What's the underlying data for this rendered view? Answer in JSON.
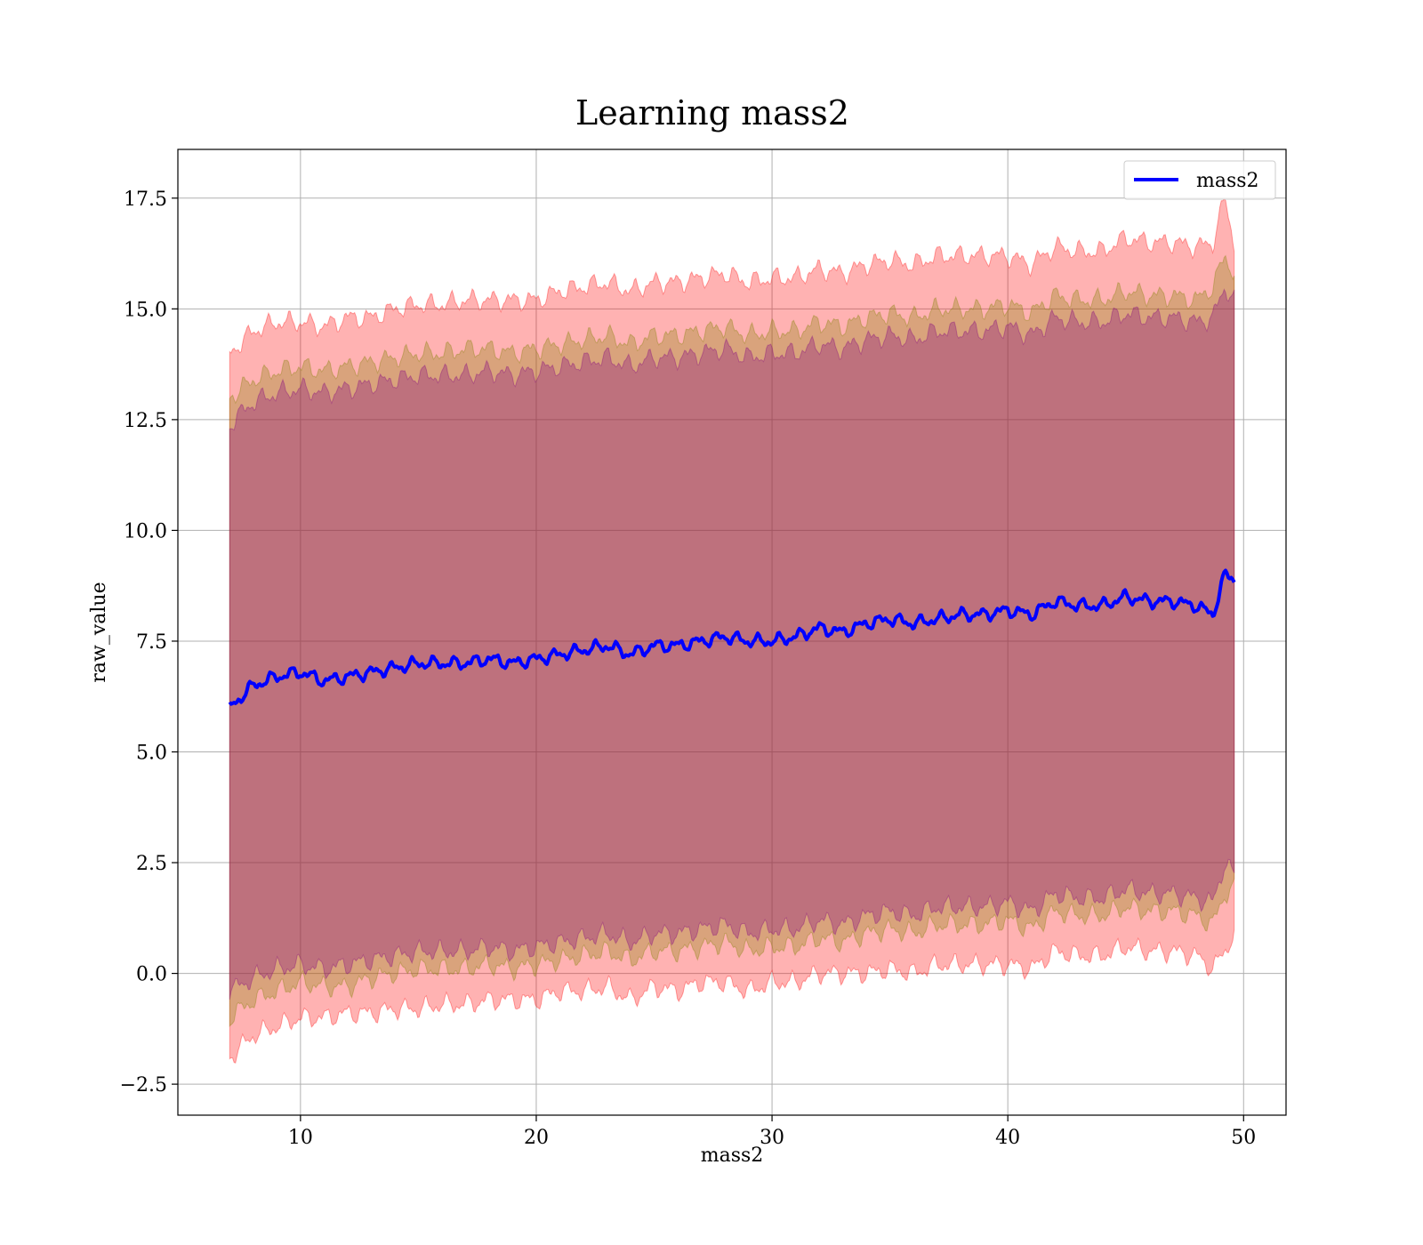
{
  "chart_data": {
    "type": "line",
    "title": "Learning mass2",
    "xlabel": "mass2",
    "ylabel": "raw_value",
    "xlim": [
      4.8,
      51.8
    ],
    "ylim": [
      -3.2,
      18.6
    ],
    "xticks": [
      10,
      20,
      30,
      40,
      50
    ],
    "xtick_labels": [
      "10",
      "20",
      "30",
      "40",
      "50"
    ],
    "yticks": [
      -2.5,
      0.0,
      2.5,
      5.0,
      7.5,
      10.0,
      12.5,
      15.0,
      17.5
    ],
    "ytick_labels": [
      "−2.5",
      "0.0",
      "2.5",
      "5.0",
      "7.5",
      "10.0",
      "12.5",
      "15.0",
      "17.5"
    ],
    "grid": true,
    "legend_position": "top-right",
    "x_range": [
      7.0,
      49.6
    ],
    "series": [
      {
        "name": "mass2",
        "color": "#0000ff",
        "x": [
          7.0,
          8,
          9,
          10,
          11,
          12,
          13,
          14,
          15,
          16,
          17,
          18,
          19,
          20,
          21,
          22,
          23,
          24,
          25,
          26,
          27,
          28,
          29,
          30,
          31,
          32,
          33,
          34,
          35,
          36,
          37,
          38,
          39,
          40,
          41,
          42,
          43,
          44,
          45,
          46,
          47,
          48,
          48.7,
          49.2,
          49.6
        ],
        "y": [
          6.0,
          6.5,
          6.7,
          6.8,
          6.6,
          6.7,
          6.8,
          6.9,
          7.0,
          7.0,
          7.0,
          7.1,
          7.0,
          7.1,
          7.2,
          7.3,
          7.4,
          7.2,
          7.4,
          7.4,
          7.5,
          7.6,
          7.5,
          7.5,
          7.6,
          7.8,
          7.7,
          7.9,
          8.0,
          7.9,
          8.0,
          8.1,
          8.1,
          8.2,
          8.1,
          8.4,
          8.3,
          8.3,
          8.5,
          8.4,
          8.4,
          8.3,
          8.1,
          9.0,
          8.9
        ]
      }
    ],
    "bands": [
      {
        "fill": "#ff0000",
        "opacity": 0.3,
        "lower": [
          -1.9,
          -1.4,
          -1.2,
          -1.0,
          -1.0,
          -0.9,
          -0.9,
          -0.8,
          -0.8,
          -0.7,
          -0.7,
          -0.6,
          -0.6,
          -0.6,
          -0.4,
          -0.4,
          -0.3,
          -0.6,
          -0.3,
          -0.4,
          -0.2,
          -0.2,
          -0.4,
          -0.2,
          -0.2,
          0.0,
          0.0,
          0.0,
          0.1,
          0.0,
          0.2,
          0.2,
          0.2,
          0.2,
          0.1,
          0.5,
          0.4,
          0.4,
          0.6,
          0.5,
          0.5,
          0.4,
          0.1,
          0.5,
          0.9
        ],
        "upper": [
          14.0,
          14.5,
          14.7,
          14.7,
          14.6,
          14.8,
          14.8,
          15.0,
          15.1,
          15.1,
          15.2,
          15.2,
          15.2,
          15.2,
          15.4,
          15.5,
          15.6,
          15.4,
          15.6,
          15.6,
          15.7,
          15.8,
          15.6,
          15.7,
          15.7,
          15.9,
          15.8,
          16.0,
          16.1,
          16.0,
          16.2,
          16.2,
          16.2,
          16.2,
          16.0,
          16.4,
          16.3,
          16.3,
          16.6,
          16.5,
          16.5,
          16.4,
          16.5,
          17.5,
          16.5
        ]
      },
      {
        "fill": "#808000",
        "opacity": 0.3,
        "lower": [
          -1.0,
          -0.6,
          -0.4,
          -0.2,
          -0.3,
          -0.3,
          -0.1,
          0.0,
          0.1,
          0.1,
          0.1,
          0.2,
          0.1,
          0.2,
          0.3,
          0.4,
          0.5,
          0.3,
          0.5,
          0.5,
          0.6,
          0.7,
          0.5,
          0.6,
          0.6,
          0.8,
          0.7,
          0.9,
          1.0,
          0.9,
          1.1,
          1.1,
          1.1,
          1.2,
          1.0,
          1.4,
          1.3,
          1.3,
          1.5,
          1.4,
          1.4,
          1.3,
          1.1,
          1.8,
          1.9
        ],
        "upper": [
          13.0,
          13.4,
          13.6,
          13.7,
          13.6,
          13.7,
          13.8,
          13.9,
          14.0,
          14.0,
          14.1,
          14.1,
          14.0,
          14.1,
          14.2,
          14.3,
          14.4,
          14.2,
          14.4,
          14.4,
          14.5,
          14.6,
          14.4,
          14.5,
          14.5,
          14.7,
          14.6,
          14.8,
          14.9,
          14.8,
          15.0,
          15.0,
          15.0,
          15.1,
          14.9,
          15.3,
          15.2,
          15.2,
          15.4,
          15.3,
          15.3,
          15.2,
          15.5,
          16.2,
          15.8
        ]
      },
      {
        "fill": "#800080",
        "opacity": 0.3,
        "lower": [
          -0.4,
          -0.1,
          0.1,
          0.2,
          0.1,
          0.2,
          0.3,
          0.4,
          0.5,
          0.5,
          0.5,
          0.6,
          0.5,
          0.6,
          0.7,
          0.8,
          0.9,
          0.7,
          0.9,
          0.9,
          1.0,
          1.1,
          0.9,
          1.0,
          1.0,
          1.2,
          1.1,
          1.3,
          1.4,
          1.3,
          1.5,
          1.5,
          1.5,
          1.6,
          1.4,
          1.8,
          1.7,
          1.7,
          1.9,
          1.8,
          1.8,
          1.7,
          1.6,
          2.5,
          2.2
        ],
        "upper": [
          12.4,
          12.9,
          13.1,
          13.2,
          13.1,
          13.2,
          13.3,
          13.4,
          13.5,
          13.5,
          13.5,
          13.6,
          13.5,
          13.6,
          13.7,
          13.8,
          13.9,
          13.7,
          13.9,
          13.9,
          14.0,
          14.1,
          13.9,
          14.0,
          14.0,
          14.2,
          14.1,
          14.3,
          14.4,
          14.3,
          14.5,
          14.5,
          14.5,
          14.6,
          14.4,
          14.8,
          14.7,
          14.7,
          14.9,
          14.8,
          14.8,
          14.7,
          14.8,
          15.5,
          15.2
        ]
      }
    ]
  }
}
